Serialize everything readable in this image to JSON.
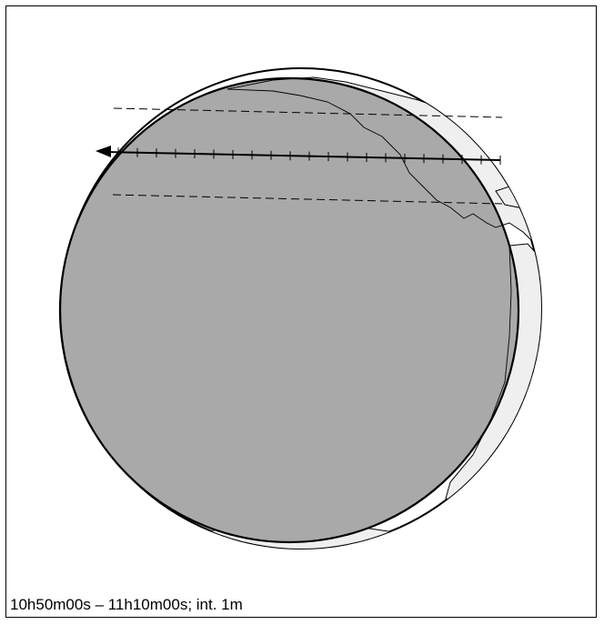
{
  "caption": "10h50m00s – 11h10m00s; int.  1m",
  "track": {
    "tick_count": 21,
    "interval": "1m",
    "start": "10h50m00s",
    "end": "11h10m00s"
  },
  "colors": {
    "land": "#ffffff",
    "shadow": "#a9a9a9",
    "penumbra_land": "#ececec",
    "outline": "#000000"
  }
}
